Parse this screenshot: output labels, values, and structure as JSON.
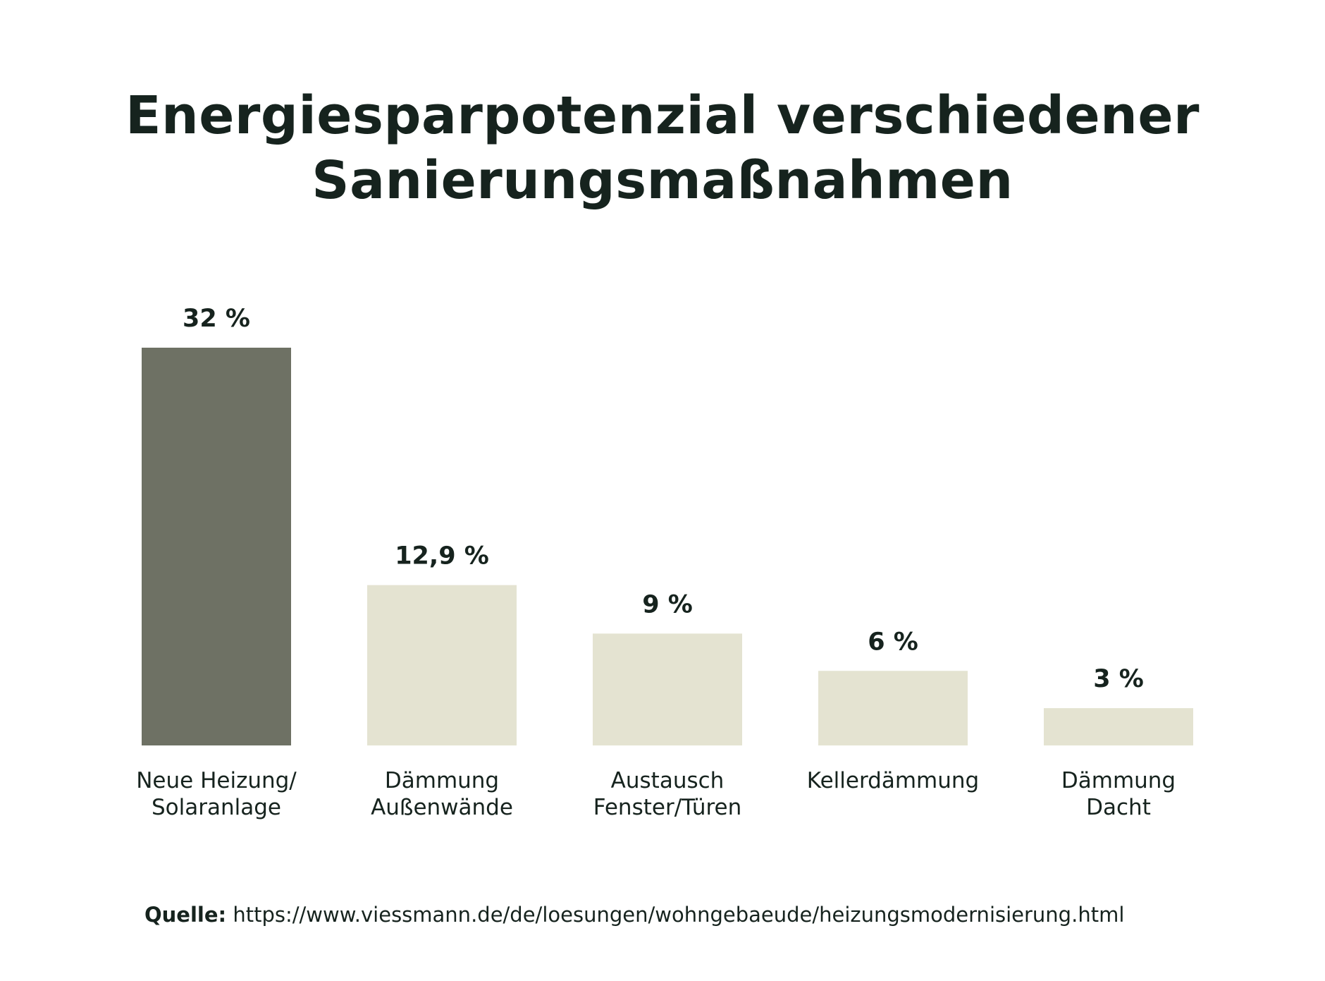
{
  "chart_data": {
    "type": "bar",
    "title": "Energiesparpotenzial verschiedener Sanierungsmaßnahmen",
    "title_lines": [
      "Energiesparpotenzial verschiedener",
      "Sanierungsmaßnahmen"
    ],
    "categories": [
      [
        "Neue Heizung/",
        "Solaranlage"
      ],
      [
        "Dämmung",
        "Außenwände"
      ],
      [
        "Austausch",
        "Fenster/Türen"
      ],
      [
        "Kellerdämmung"
      ],
      [
        "Dämmung",
        "Dacht"
      ]
    ],
    "values": [
      32,
      12.9,
      9,
      6,
      3
    ],
    "value_labels": [
      "32 %",
      "12,9 %",
      "9 %",
      "6 %",
      "3 %"
    ],
    "unit": "%",
    "ylim": [
      0,
      32
    ],
    "grid": false,
    "legend": "none",
    "colors": {
      "highlight": "#6e7164",
      "default": "#e4e3d1",
      "text": "#16231e"
    },
    "highlight_index": 0
  },
  "source": {
    "label": "Quelle:",
    "url": "https://www.viessmann.de/de/loesungen/wohngebaeude/heizungsmodernisierung.html"
  }
}
